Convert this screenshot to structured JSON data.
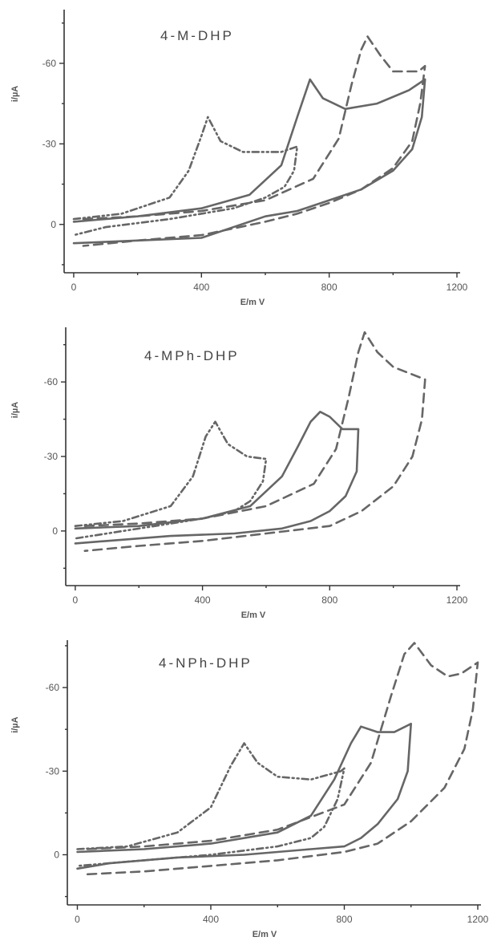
{
  "chart_data": [
    {
      "type": "line",
      "title": "4-M-DHP",
      "xlabel": "E/m V",
      "ylabel": "i/µA",
      "xlim": [
        -30,
        1200
      ],
      "ylim": [
        18,
        -80
      ],
      "xticks": [
        0,
        400,
        800,
        1200
      ],
      "yticks": [
        0,
        -30,
        -60
      ],
      "xtick_labels": [
        "0",
        "400",
        "800",
        "1200"
      ],
      "ytick_labels": [
        "0",
        "-30",
        "-60"
      ],
      "series": [
        {
          "style": "solid",
          "x": [
            0,
            200,
            400,
            550,
            650,
            700,
            740,
            780,
            850,
            950,
            1050,
            1100,
            1090,
            1060,
            1000,
            900,
            800,
            700,
            600,
            400,
            200,
            0
          ],
          "y": [
            -1,
            -3,
            -6,
            -11,
            -22,
            -40,
            -54,
            -47,
            -43,
            -45,
            -50,
            -54,
            -40,
            -28,
            -20,
            -13,
            -9,
            -5,
            -3,
            5,
            6,
            7
          ]
        },
        {
          "style": "dashed",
          "x": [
            30,
            200,
            400,
            600,
            750,
            830,
            870,
            900,
            920,
            960,
            1000,
            1080,
            1100,
            1085,
            1060,
            1000,
            900,
            800,
            700,
            600,
            400,
            200,
            30
          ],
          "y": [
            -2,
            -3,
            -5,
            -9,
            -17,
            -32,
            -52,
            -65,
            -70,
            -63,
            -57,
            -57,
            -59,
            -45,
            -31,
            -21,
            -13,
            -8,
            -4,
            -1,
            4,
            6,
            8
          ]
        },
        {
          "style": "dash-dot-dot",
          "x": [
            0,
            150,
            300,
            360,
            400,
            420,
            460,
            530,
            600,
            650,
            700,
            690,
            660,
            600,
            500,
            300,
            100,
            0
          ],
          "y": [
            -2,
            -4,
            -10,
            -20,
            -33,
            -40,
            -31,
            -27,
            -27,
            -27,
            -29,
            -20,
            -14,
            -10,
            -6,
            -2,
            1,
            4
          ]
        }
      ]
    },
    {
      "type": "line",
      "title": "4-MPh-DHP",
      "xlabel": "E/m V",
      "ylabel": "i/µA",
      "xlim": [
        -30,
        1200
      ],
      "ylim": [
        22,
        -82
      ],
      "xticks": [
        0,
        400,
        800,
        1200
      ],
      "yticks": [
        0,
        -30,
        -60
      ],
      "xtick_labels": [
        "0",
        "400",
        "800",
        "1200"
      ],
      "ytick_labels": [
        "0",
        "-30",
        "-60"
      ],
      "series": [
        {
          "style": "solid",
          "x": [
            0,
            200,
            400,
            550,
            650,
            700,
            740,
            770,
            800,
            840,
            890,
            885,
            850,
            800,
            740,
            650,
            500,
            300,
            100,
            0
          ],
          "y": [
            -1,
            -2,
            -5,
            -10,
            -22,
            -34,
            -44,
            -48,
            -46,
            -41,
            -41,
            -24,
            -14,
            -8,
            -4,
            -1,
            1,
            2,
            4,
            5
          ]
        },
        {
          "style": "dashed",
          "x": [
            30,
            200,
            400,
            600,
            750,
            820,
            860,
            890,
            910,
            950,
            1000,
            1060,
            1100,
            1090,
            1060,
            1000,
            900,
            800,
            600,
            400,
            200,
            30
          ],
          "y": [
            -2,
            -3,
            -5,
            -10,
            -19,
            -33,
            -54,
            -72,
            -80,
            -72,
            -66,
            -63,
            -61,
            -45,
            -30,
            -18,
            -8,
            -2,
            1,
            4,
            6,
            8
          ]
        },
        {
          "style": "dash-dot-dot",
          "x": [
            0,
            150,
            300,
            370,
            410,
            440,
            480,
            540,
            600,
            590,
            550,
            500,
            400,
            200,
            0
          ],
          "y": [
            -2,
            -4,
            -10,
            -22,
            -38,
            -44,
            -35,
            -30,
            -29,
            -20,
            -12,
            -8,
            -5,
            -1,
            3
          ]
        }
      ]
    },
    {
      "type": "line",
      "title": "4-NPh-DHP",
      "xlabel": "E/m V",
      "ylabel": "i/µA",
      "xlim": [
        -30,
        1200
      ],
      "ylim": [
        18,
        -77
      ],
      "xticks": [
        0,
        400,
        800,
        1200
      ],
      "yticks": [
        0,
        -30,
        -60
      ],
      "xtick_labels": [
        "0",
        "400",
        "800",
        "1200"
      ],
      "ytick_labels": [
        "0",
        "-30",
        "-60"
      ],
      "series": [
        {
          "style": "solid",
          "x": [
            0,
            200,
            400,
            600,
            700,
            770,
            820,
            850,
            900,
            950,
            1000,
            990,
            960,
            900,
            850,
            800,
            700,
            500,
            300,
            100,
            0
          ],
          "y": [
            -1,
            -2,
            -4,
            -8,
            -14,
            -27,
            -40,
            -46,
            -44,
            -44,
            -47,
            -30,
            -20,
            -11,
            -6,
            -3,
            -2,
            0,
            1,
            3,
            5
          ]
        },
        {
          "style": "dashed",
          "x": [
            30,
            200,
            400,
            600,
            800,
            880,
            940,
            980,
            1010,
            1060,
            1110,
            1150,
            1200,
            1185,
            1160,
            1100,
            1000,
            900,
            800,
            600,
            400,
            200,
            30
          ],
          "y": [
            -2,
            -3,
            -5,
            -9,
            -18,
            -33,
            -57,
            -72,
            -76,
            -68,
            -64,
            -65,
            -69,
            -52,
            -38,
            -24,
            -12,
            -4,
            -1,
            2,
            4,
            6,
            7
          ]
        },
        {
          "style": "dash-dot-dot",
          "x": [
            0,
            150,
            300,
            400,
            460,
            500,
            540,
            600,
            700,
            790,
            800,
            780,
            740,
            700,
            600,
            400,
            200,
            0
          ],
          "y": [
            -2,
            -3,
            -8,
            -17,
            -32,
            -40,
            -33,
            -28,
            -27,
            -30,
            -31,
            -20,
            -10,
            -6,
            -3,
            0,
            2,
            4
          ]
        }
      ]
    }
  ]
}
